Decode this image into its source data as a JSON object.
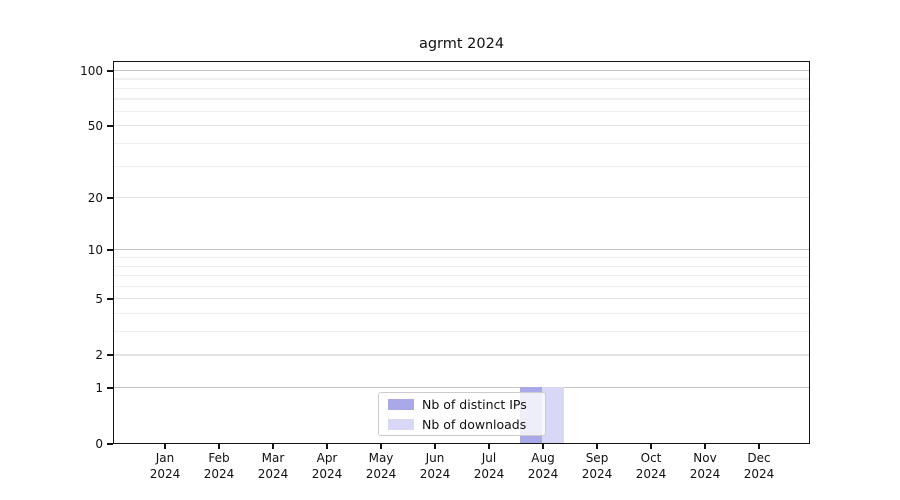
{
  "chart_data": {
    "type": "bar",
    "title": "agrmt 2024",
    "categories": [
      "Jan 2024",
      "Feb 2024",
      "Mar 2024",
      "Apr 2024",
      "May 2024",
      "Jun 2024",
      "Jul 2024",
      "Aug 2024",
      "Sep 2024",
      "Oct 2024",
      "Nov 2024",
      "Dec 2024"
    ],
    "series": [
      {
        "name": "Nb of distinct IPs",
        "color": "#a9a9e9",
        "values": [
          0,
          0,
          0,
          0,
          0,
          0,
          0,
          1,
          0,
          0,
          0,
          0
        ]
      },
      {
        "name": "Nb of downloads",
        "color": "#d8d8f6",
        "values": [
          0,
          0,
          0,
          0,
          0,
          0,
          0,
          1,
          0,
          0,
          0,
          0
        ]
      }
    ],
    "y_scale": "log1p",
    "ylim": [
      0,
      113
    ],
    "y_ticks": [
      0,
      1,
      2,
      5,
      10,
      20,
      50,
      100
    ],
    "y_gridlines": {
      "major": [
        1,
        10,
        100
      ],
      "mid": [
        2,
        5,
        20,
        50
      ],
      "minor": [
        3,
        4,
        6,
        7,
        8,
        9,
        30,
        40,
        60,
        70,
        80,
        90
      ]
    },
    "grid": "horizontal",
    "legend_position": "inside-bottom-center",
    "xlabel": "",
    "ylabel": ""
  }
}
